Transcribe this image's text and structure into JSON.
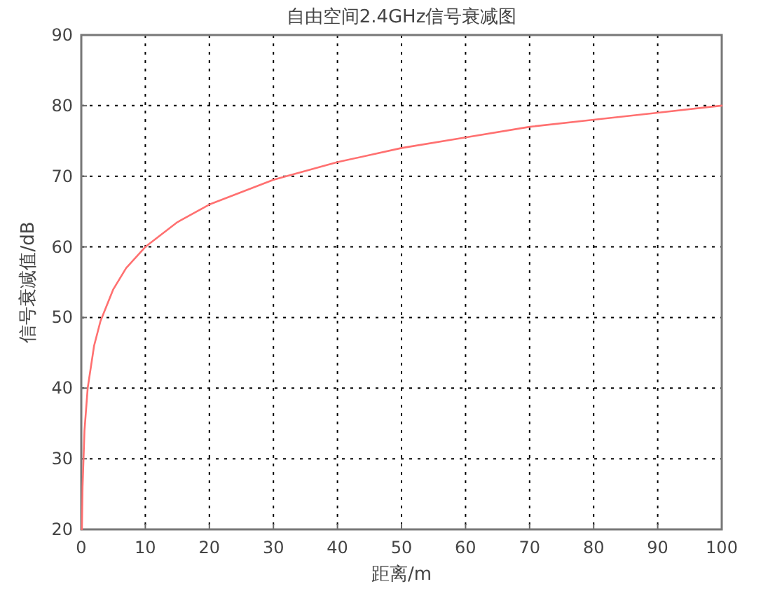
{
  "chart_data": {
    "type": "line",
    "title": "自由空间2.4GHz信号衰减图",
    "xlabel": "距离/m",
    "ylabel": "信号衰减值/dB",
    "series": [
      {
        "color": "#ff7070",
        "x": [
          0.1,
          0.2,
          0.5,
          1,
          2,
          3,
          5,
          7,
          10,
          15,
          20,
          30,
          40,
          50,
          60,
          70,
          80,
          90,
          100
        ],
        "values": [
          20,
          26,
          34,
          40,
          46,
          49.5,
          54,
          57,
          60,
          63.5,
          66,
          69.5,
          72,
          74,
          75.5,
          77,
          78,
          79,
          80
        ]
      }
    ],
    "xlim": [
      0,
      100
    ],
    "ylim": [
      20,
      90
    ],
    "xticks": [
      0,
      10,
      20,
      30,
      40,
      50,
      60,
      70,
      80,
      90,
      100
    ],
    "yticks": [
      20,
      30,
      40,
      50,
      60,
      70,
      80,
      90
    ],
    "grid": true
  }
}
